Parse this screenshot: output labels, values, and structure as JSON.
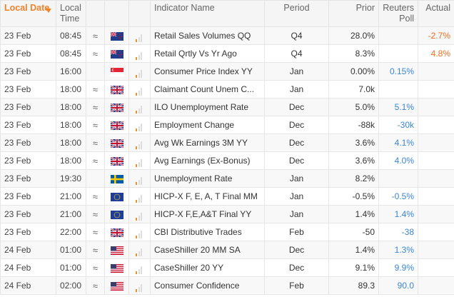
{
  "header": {
    "date": "Local Date",
    "time": "Local Time",
    "name": "Indicator Name",
    "period": "Period",
    "prior": "Prior",
    "poll": "Reuters Poll",
    "actual": "Actual"
  },
  "rows": [
    {
      "date": "23 Feb",
      "time": "08:45",
      "vol": "≈",
      "flag": "nz-flag",
      "importance": 1,
      "name": "Retail Sales Volumes QQ",
      "period": "Q4",
      "prior": "28.0%",
      "poll": "",
      "actual": "-2.7%"
    },
    {
      "date": "23 Feb",
      "time": "08:45",
      "vol": "≈",
      "flag": "nz-flag",
      "importance": 1,
      "name": "Retail Qrtly Vs Yr Ago",
      "period": "Q4",
      "prior": "8.3%",
      "poll": "",
      "actual": "4.8%"
    },
    {
      "date": "23 Feb",
      "time": "16:00",
      "vol": "",
      "flag": "sg-flag",
      "importance": 1,
      "name": "Consumer Price Index YY",
      "period": "Jan",
      "prior": "0.00%",
      "poll": "0.15%",
      "actual": ""
    },
    {
      "date": "23 Feb",
      "time": "18:00",
      "vol": "≈",
      "flag": "uk-flag",
      "importance": 1,
      "name": "Claimant Count Unem C...",
      "period": "Jan",
      "prior": "7.0k",
      "poll": "",
      "actual": ""
    },
    {
      "date": "23 Feb",
      "time": "18:00",
      "vol": "≈",
      "flag": "uk-flag",
      "importance": 1,
      "name": "ILO Unemployment Rate",
      "period": "Dec",
      "prior": "5.0%",
      "poll": "5.1%",
      "actual": ""
    },
    {
      "date": "23 Feb",
      "time": "18:00",
      "vol": "≈",
      "flag": "uk-flag",
      "importance": 1,
      "name": "Employment Change",
      "period": "Dec",
      "prior": "-88k",
      "poll": "-30k",
      "actual": ""
    },
    {
      "date": "23 Feb",
      "time": "18:00",
      "vol": "≈",
      "flag": "uk-flag",
      "importance": 1,
      "name": "Avg Wk Earnings 3M YY",
      "period": "Dec",
      "prior": "3.6%",
      "poll": "4.1%",
      "actual": ""
    },
    {
      "date": "23 Feb",
      "time": "18:00",
      "vol": "≈",
      "flag": "uk-flag",
      "importance": 1,
      "name": "Avg Earnings (Ex-Bonus)",
      "period": "Dec",
      "prior": "3.6%",
      "poll": "4.0%",
      "actual": ""
    },
    {
      "date": "23 Feb",
      "time": "19:30",
      "vol": "",
      "flag": "se-flag",
      "importance": 1,
      "name": "Unemployment Rate",
      "period": "Jan",
      "prior": "8.2%",
      "poll": "",
      "actual": ""
    },
    {
      "date": "23 Feb",
      "time": "21:00",
      "vol": "≈",
      "flag": "eu-flag",
      "importance": 1,
      "name": "HICP-X F, E, A, T Final MM",
      "period": "Jan",
      "prior": "-0.5%",
      "poll": "-0.5%",
      "actual": ""
    },
    {
      "date": "23 Feb",
      "time": "21:00",
      "vol": "≈",
      "flag": "eu-flag",
      "importance": 1,
      "name": "HICP-X F,E,A&T Final YY",
      "period": "Jan",
      "prior": "1.4%",
      "poll": "1.4%",
      "actual": ""
    },
    {
      "date": "23 Feb",
      "time": "22:00",
      "vol": "≈",
      "flag": "uk-flag",
      "importance": 1,
      "name": "CBI Distributive Trades",
      "period": "Feb",
      "prior": "-50",
      "poll": "-38",
      "actual": ""
    },
    {
      "date": "24 Feb",
      "time": "01:00",
      "vol": "≈",
      "flag": "us-flag",
      "importance": 1,
      "name": "CaseShiller 20 MM SA",
      "period": "Dec",
      "prior": "1.4%",
      "poll": "1.3%",
      "actual": ""
    },
    {
      "date": "24 Feb",
      "time": "01:00",
      "vol": "≈",
      "flag": "us-flag",
      "importance": 1,
      "name": "CaseShiller 20 YY",
      "period": "Dec",
      "prior": "9.1%",
      "poll": "9.9%",
      "actual": ""
    },
    {
      "date": "24 Feb",
      "time": "02:00",
      "vol": "≈",
      "flag": "us-flag",
      "importance": 1,
      "name": "Consumer Confidence",
      "period": "Feb",
      "prior": "89.3",
      "poll": "90.0",
      "actual": ""
    }
  ],
  "colors": {
    "accent": "#f0832a",
    "poll": "#3a86d6",
    "actual": "#f26d21",
    "bar_on": "#f0902d",
    "bar_off": "#dddddd"
  }
}
